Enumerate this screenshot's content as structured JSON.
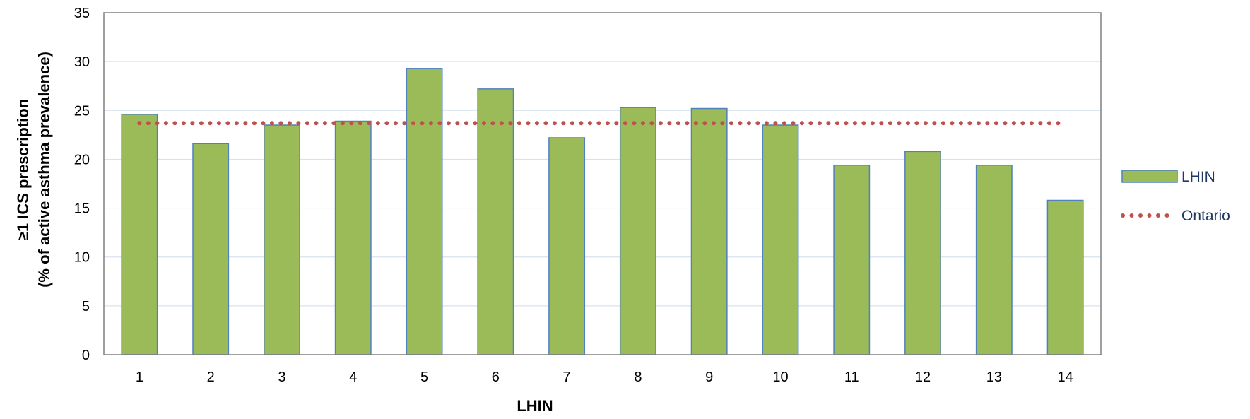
{
  "chart_data": {
    "type": "bar",
    "categories": [
      "1",
      "2",
      "3",
      "4",
      "5",
      "6",
      "7",
      "8",
      "9",
      "10",
      "11",
      "12",
      "13",
      "14"
    ],
    "series": [
      {
        "name": "LHIN",
        "type": "bar",
        "color": "#9bbb59",
        "edge_color": "#4f81bd",
        "values": [
          24.6,
          21.6,
          23.5,
          23.9,
          29.3,
          27.2,
          22.2,
          25.3,
          25.2,
          23.5,
          19.4,
          20.8,
          19.4,
          15.8
        ]
      },
      {
        "name": "Ontario",
        "type": "line",
        "style": "dotted",
        "color": "#c0504d",
        "value": 23.7
      }
    ],
    "xlabel": "LHIN",
    "ylabel_line1": "≥1 ICS prescription",
    "ylabel_line2": "(% of active asthma prevalence)",
    "ylim": [
      0,
      35
    ],
    "yticks": [
      0,
      5,
      10,
      15,
      20,
      25,
      30,
      35
    ],
    "grid": true,
    "legend_position": "right"
  }
}
